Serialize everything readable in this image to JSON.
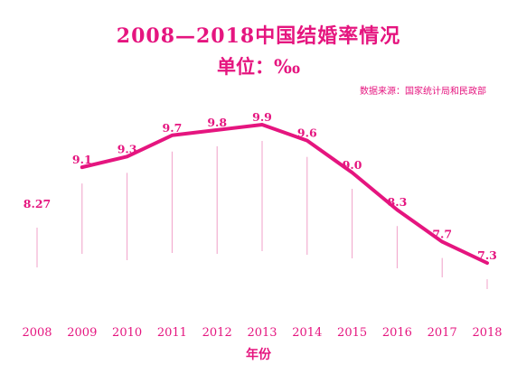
{
  "colors": {
    "accent": "#e5157f",
    "line": "#e5157f",
    "stem": "#f0a0c8"
  },
  "header": {
    "title": "2008—2018中国结婚率情况",
    "unit": "单位：‰",
    "source": "数据来源：国家统计局和民政部"
  },
  "chart_data": {
    "type": "line",
    "title": "2008—2018中国结婚率情况",
    "subtitle": "单位：‰",
    "xlabel": "年份",
    "ylabel": "",
    "categories": [
      "2008",
      "2009",
      "2010",
      "2011",
      "2012",
      "2013",
      "2014",
      "2015",
      "2016",
      "2017",
      "2018"
    ],
    "values": [
      8.27,
      9.1,
      9.3,
      9.7,
      9.8,
      9.9,
      9.6,
      9.0,
      8.3,
      7.7,
      7.3
    ],
    "data_labels": [
      "8.27",
      "9.1",
      "9.3",
      "9.7",
      "9.8",
      "9.9",
      "9.6",
      "9.0",
      "8.3",
      "7.7",
      "7.3"
    ],
    "ylim": [
      6.5,
      10.2
    ],
    "grid": false,
    "legend": "none"
  }
}
